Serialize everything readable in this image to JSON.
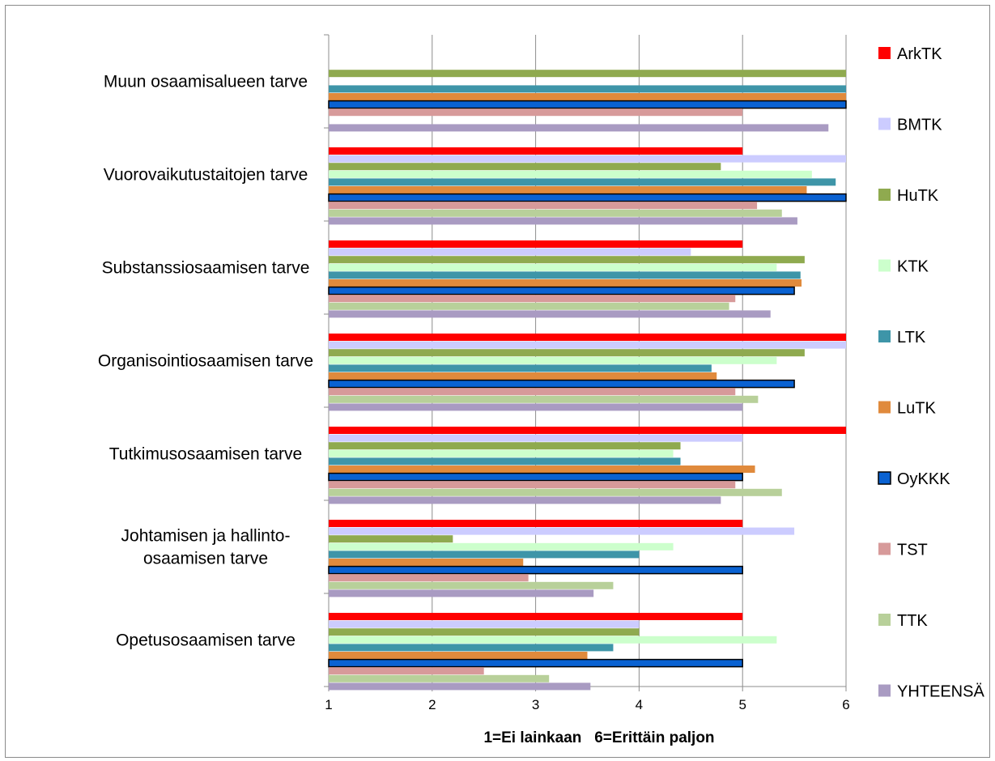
{
  "chart_data": {
    "type": "bar",
    "orientation": "horizontal",
    "xlabel": "1=Ei lainkaan   6=Erittäin paljon",
    "xlim": [
      1,
      6
    ],
    "xticks": [
      "1",
      "2",
      "3",
      "4",
      "5",
      "6"
    ],
    "grid": true,
    "legend_position": "right",
    "categories": [
      [
        "Muun osaamisalueen tarve"
      ],
      [
        "Vuorovaikutustaitojen tarve"
      ],
      [
        "Substanssiosaamisen tarve"
      ],
      [
        "Organisointiosaamisen tarve"
      ],
      [
        "Tutkimusosaamisen tarve"
      ],
      [
        "Johtamisen ja hallinto-",
        "osaamisen tarve"
      ],
      [
        "Opetusosaamisen tarve"
      ]
    ],
    "series": [
      {
        "name": "ArkTK",
        "color": "#ff0000",
        "values": [
          null,
          5,
          5,
          6,
          6,
          5,
          5
        ]
      },
      {
        "name": "BMTK",
        "color": "#ccccff",
        "values": [
          null,
          6,
          4.5,
          6,
          5,
          5.5,
          4
        ]
      },
      {
        "name": "HuTK",
        "color": "#8faa4f",
        "values": [
          6,
          4.79,
          5.6,
          5.6,
          4.4,
          2.2,
          4
        ]
      },
      {
        "name": "KTK",
        "color": "#ccffcc",
        "values": [
          null,
          5.67,
          5.33,
          5.33,
          4.33,
          4.33,
          5.33
        ]
      },
      {
        "name": "LTK",
        "color": "#3e95a8",
        "values": [
          6,
          5.9,
          5.56,
          4.7,
          4.4,
          4,
          3.75
        ]
      },
      {
        "name": "LuTK",
        "color": "#e08a3c",
        "values": [
          6,
          5.62,
          5.57,
          4.75,
          5.12,
          2.88,
          3.5
        ]
      },
      {
        "name": "OyKKK",
        "color": "#0a62d2",
        "outline": "#000000",
        "values": [
          6,
          6,
          5.5,
          5.5,
          5,
          5,
          5
        ]
      },
      {
        "name": "TST",
        "color": "#d79a9a",
        "values": [
          5,
          5.14,
          4.93,
          4.93,
          4.93,
          2.93,
          2.5
        ]
      },
      {
        "name": "TTK",
        "color": "#b8d09a",
        "values": [
          null,
          5.38,
          4.87,
          5.15,
          5.38,
          3.75,
          3.13
        ]
      },
      {
        "name": "YHTEENSÄ",
        "color": "#a99bc2",
        "values": [
          5.83,
          5.53,
          5.27,
          5,
          4.79,
          3.56,
          3.53
        ]
      }
    ]
  }
}
